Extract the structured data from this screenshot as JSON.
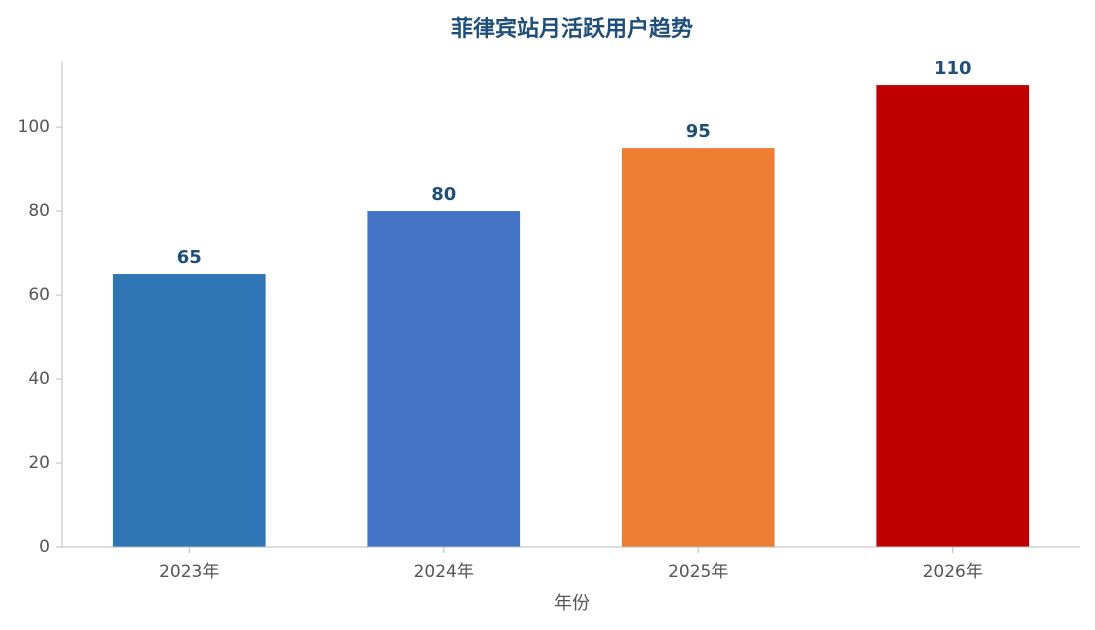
{
  "chart_data": {
    "type": "bar",
    "title": "菲律宾站月活跃用户趋势",
    "x_label": "年份",
    "categories": [
      "2023年",
      "2024年",
      "2025年",
      "2026年"
    ],
    "values": [
      65,
      80,
      95,
      110
    ],
    "colors": [
      "#2e75b6",
      "#4472c4",
      "#ed7d31",
      "#c00000"
    ],
    "ylim": [
      0,
      115.5
    ],
    "yticks": [
      0,
      20,
      40,
      60,
      80,
      100
    ],
    "grid": false
  }
}
